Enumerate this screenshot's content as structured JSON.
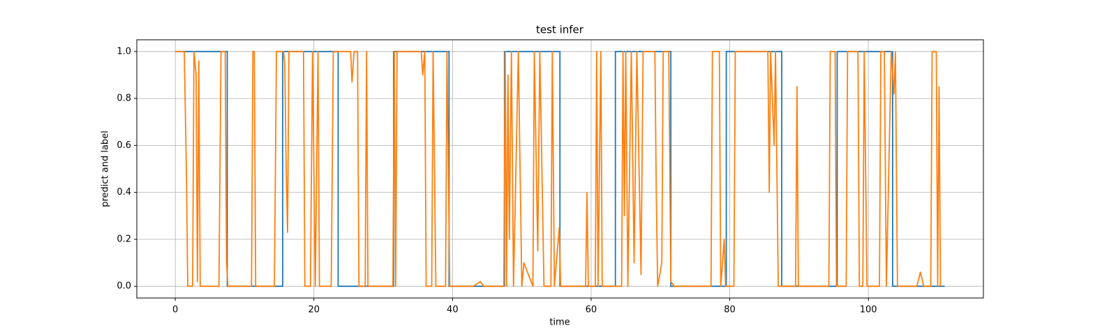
{
  "chart_data": {
    "type": "line",
    "title": "test infer",
    "xlabel": "time",
    "ylabel": "predict and label",
    "xlim": [
      -5.55,
      116.6
    ],
    "ylim": [
      -0.05,
      1.05
    ],
    "xticks": [
      0,
      20,
      40,
      60,
      80,
      100
    ],
    "yticks": [
      {
        "value": 0,
        "label": "0.0"
      },
      {
        "value": 0.2,
        "label": "0.2"
      },
      {
        "value": 0.4,
        "label": "0.4"
      },
      {
        "value": 0.6,
        "label": "0.6"
      },
      {
        "value": 0.8,
        "label": "0.8"
      },
      {
        "value": 1,
        "label": "1.0"
      }
    ],
    "grid": true,
    "series": [
      {
        "color": "#1f77b4",
        "x": [
          0,
          7.5,
          7.5,
          15.5,
          15.5,
          23.5,
          23.5,
          31.5,
          31.5,
          39.5,
          39.5,
          47.5,
          47.5,
          55.5,
          55.5,
          63.5,
          63.5,
          71.5,
          71.5,
          79.5,
          79.5,
          87.5,
          87.5,
          95.5,
          95.5,
          103.5,
          103.5,
          111
        ],
        "values": [
          1,
          1,
          0,
          0,
          1,
          1,
          0,
          0,
          1,
          1,
          0,
          0,
          1,
          1,
          0,
          0,
          1,
          1,
          0,
          0,
          1,
          1,
          0,
          0,
          1,
          1,
          0,
          0
        ]
      },
      {
        "color": "#ff7f0e",
        "x": [
          0,
          1.3,
          1.6,
          1.8,
          2.5,
          2.7,
          3.0,
          3.2,
          3.4,
          3.6,
          6.3,
          6.6,
          7.2,
          7.4,
          7.6,
          11,
          11.2,
          11.4,
          11.6,
          14.3,
          14.6,
          15.6,
          15.8,
          16,
          16.2,
          16.4,
          18.5,
          18.7,
          19.5,
          19.8,
          20.2,
          20.6,
          20.8,
          22.5,
          22.8,
          25.3,
          25.5,
          25.8,
          26.3,
          26.5,
          27.4,
          27.6,
          27.8,
          31.4,
          31.6,
          31.8,
          32,
          35.5,
          35.7,
          36,
          36.2,
          37,
          37.2,
          37.6,
          39,
          39.2,
          39.6,
          43,
          44,
          44.5,
          47.4,
          47.6,
          47.8,
          48,
          48.2,
          48.5,
          48.8,
          49.5,
          50,
          50.3,
          51.6,
          51.8,
          52.3,
          52.6,
          53.2,
          54.2,
          54.4,
          54.7,
          55.4,
          55.6,
          59.2,
          59.4,
          59.6,
          60.6,
          60.8,
          61,
          61.4,
          61.6,
          64.4,
          64.6,
          64.8,
          65.0,
          65.3,
          65.8,
          66.2,
          66.6,
          67.2,
          67.5,
          69.2,
          69.4,
          69.6,
          70.2,
          70.4,
          71.2,
          71.5,
          72,
          77.3,
          77.5,
          78.5,
          78.7,
          79.2,
          79.4,
          80.6,
          80.8,
          85.5,
          85.7,
          85.9,
          86.4,
          86.6,
          87.0,
          89.5,
          89.7,
          89.9,
          94.3,
          94.5,
          95.2,
          95.4,
          96.8,
          97,
          98.5,
          98.7,
          99.2,
          99.4,
          99.8,
          101.6,
          101.8,
          102.3,
          102.6,
          103.3,
          103.7,
          103.9,
          104.2,
          107,
          107.5,
          108,
          109,
          109.2,
          109.8,
          110,
          110.2,
          110.4
        ],
        "values": [
          1,
          1,
          0.5,
          0,
          0,
          1,
          0.9,
          0.02,
          0.96,
          0,
          0,
          1,
          1,
          0.1,
          0,
          0,
          1,
          1,
          0,
          0,
          1,
          1,
          0.95,
          0.5,
          0.23,
          1,
          1,
          0,
          0,
          1,
          0,
          1,
          0,
          0,
          1,
          1,
          0.87,
          1,
          1,
          0,
          0,
          1,
          0,
          0,
          1,
          0,
          1,
          1,
          0.9,
          1,
          0,
          0,
          1,
          0,
          0,
          1,
          0,
          0,
          0.02,
          0,
          0,
          1,
          0,
          0.9,
          0.2,
          1,
          0,
          1,
          0,
          0.1,
          0,
          1,
          0.15,
          1,
          0,
          0,
          1,
          0,
          0.25,
          0,
          0,
          0.4,
          0,
          0,
          1,
          0,
          1,
          0,
          0,
          1,
          0.3,
          1,
          0,
          1,
          0.1,
          1,
          0.05,
          1,
          1,
          0.4,
          0,
          0.1,
          1,
          1,
          0.02,
          0,
          0,
          1,
          1,
          0,
          0.2,
          0,
          0,
          1,
          1,
          0.4,
          1,
          0.6,
          1,
          0,
          0,
          0.85,
          0,
          0,
          1,
          1,
          0,
          0,
          1,
          1,
          0,
          0,
          1,
          0,
          0,
          1,
          1,
          0,
          1,
          0.82,
          1,
          0,
          0,
          0.06,
          0,
          0,
          1,
          1,
          0,
          0.85,
          0
        ]
      }
    ]
  }
}
